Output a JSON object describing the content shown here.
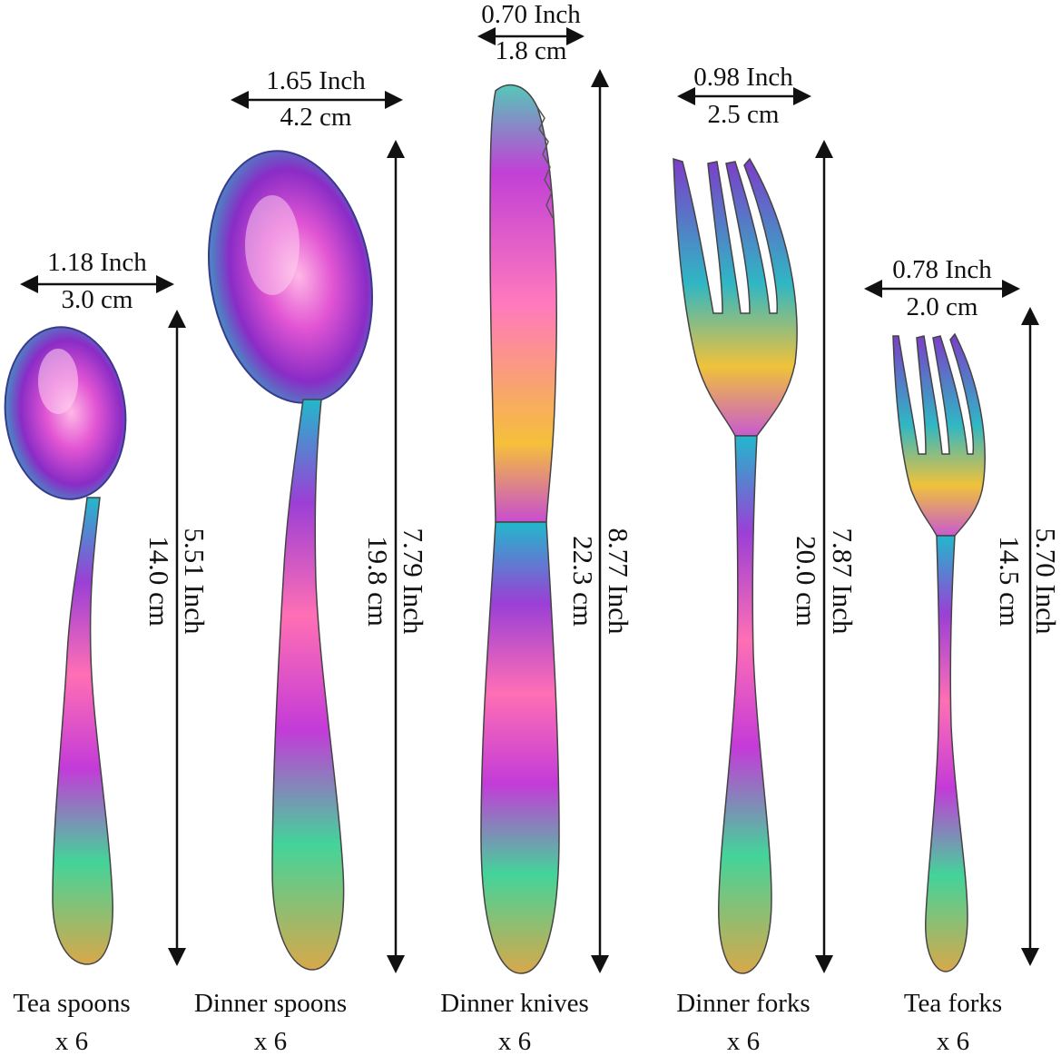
{
  "items": [
    {
      "name": "Tea spoons",
      "qty": "x 6",
      "width_in": "1.18 Inch",
      "width_cm": "3.0 cm",
      "length_in": "5.51 Inch",
      "length_cm": "14.0 cm"
    },
    {
      "name": "Dinner spoons",
      "qty": "x 6",
      "width_in": "1.65 Inch",
      "width_cm": "4.2 cm",
      "length_in": "7.79 Inch",
      "length_cm": "19.8 cm"
    },
    {
      "name": "Dinner knives",
      "qty": "x 6",
      "width_in": "0.70 Inch",
      "width_cm": "1.8 cm",
      "length_in": "8.77 Inch",
      "length_cm": "22.3 cm"
    },
    {
      "name": "Dinner forks",
      "qty": "x 6",
      "width_in": "0.98 Inch",
      "width_cm": "2.5 cm",
      "length_in": "7.87 Inch",
      "length_cm": "20.0 cm"
    },
    {
      "name": "Tea forks",
      "qty": "x 6",
      "width_in": "0.78 Inch",
      "width_cm": "2.0 cm",
      "length_in": "5.70 Inch",
      "length_cm": "14.5 cm"
    }
  ],
  "colors": {
    "background": "#ffffff",
    "text": "#111111",
    "arrow": "#111111",
    "iridescent": [
      "#1fb7c9",
      "#3fd39a",
      "#c6e04a",
      "#f2c23a",
      "#ff6fb0",
      "#c23ad9",
      "#7a2fd0"
    ]
  }
}
